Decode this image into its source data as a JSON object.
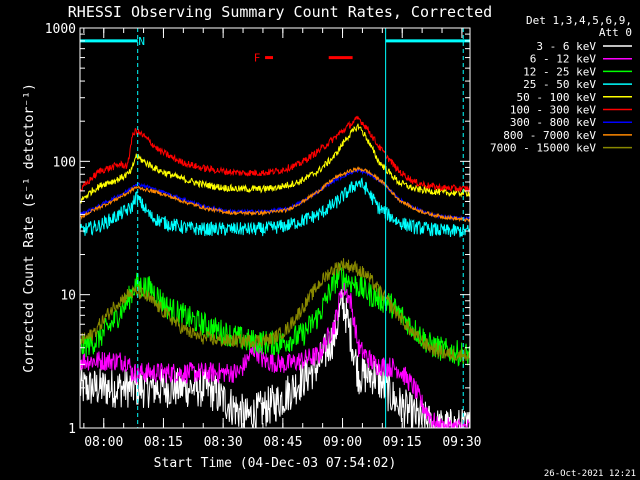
{
  "chart_data": {
    "type": "line",
    "title": "RHESSI Observing Summary Count Rates, Corrected",
    "xlabel": "Start Time (04-Dec-03 07:54:02)",
    "ylabel": "Corrected Count Rate (s⁻¹ detector⁻¹)",
    "ylim": [
      1,
      1000
    ],
    "yscale": "log",
    "xlim_minutes": [
      0,
      98
    ],
    "x_ticks": [
      {
        "label": "08:00",
        "t": 5.97
      },
      {
        "label": "08:15",
        "t": 20.97
      },
      {
        "label": "08:30",
        "t": 35.97
      },
      {
        "label": "08:45",
        "t": 50.97
      },
      {
        "label": "09:00",
        "t": 65.97
      },
      {
        "label": "09:15",
        "t": 80.97
      },
      {
        "label": "09:30",
        "t": 95.97
      }
    ],
    "y_ticks": [
      {
        "label": "1",
        "v": 1
      },
      {
        "label": "10",
        "v": 10
      },
      {
        "label": "100",
        "v": 100
      },
      {
        "label": "1000",
        "v": 1000
      }
    ],
    "legend_header": [
      "Det 1,3,4,5,6,9,",
      "Att 0"
    ],
    "legend_placement": "right",
    "series": [
      {
        "name": "3 - 6 keV",
        "color": "#ffffff",
        "x": [
          0,
          25,
          32,
          42,
          50,
          55,
          60,
          64,
          66,
          68,
          70,
          74,
          80,
          85,
          90,
          98
        ],
        "y": [
          2.0,
          2.0,
          2.0,
          1.2,
          1.6,
          2.2,
          3.0,
          5.0,
          9.0,
          5.0,
          2.5,
          2.5,
          1.5,
          1.2,
          1.0,
          1.0
        ]
      },
      {
        "name": "6 - 12 keV",
        "color": "#ff00ff",
        "x": [
          0,
          12,
          13,
          40,
          44,
          46,
          52,
          60,
          64,
          66,
          68,
          70,
          74,
          80,
          84,
          86,
          90,
          98
        ],
        "y": [
          3.2,
          3.2,
          2.6,
          2.6,
          4.0,
          3.2,
          3.0,
          3.5,
          6.0,
          12.0,
          9.0,
          4.0,
          3.0,
          2.8,
          2.0,
          1.5,
          1.0,
          1.0
        ]
      },
      {
        "name": "12 - 25 keV",
        "color": "#00ff00",
        "x": [
          0,
          4,
          8,
          12,
          14,
          18,
          22,
          28,
          34,
          42,
          50,
          56,
          60,
          63,
          65,
          67,
          69,
          73,
          78,
          84,
          88,
          92,
          98
        ],
        "y": [
          4.0,
          4.5,
          6.0,
          9.0,
          12.0,
          11.0,
          8.0,
          6.5,
          5.5,
          4.5,
          4.3,
          5.0,
          7.0,
          11.0,
          14.0,
          13.0,
          12.0,
          10.0,
          8.5,
          5.5,
          4.2,
          3.8,
          3.5
        ]
      },
      {
        "name": "25 - 50 keV",
        "color": "#00ffff",
        "x": [
          0,
          5,
          10,
          13,
          14,
          15,
          18,
          22,
          26,
          30,
          38,
          46,
          52,
          56,
          60,
          64,
          68,
          70,
          72,
          75,
          80,
          84,
          88,
          92,
          98
        ],
        "y": [
          30,
          33,
          40,
          45,
          55,
          50,
          38,
          34,
          32,
          31,
          31,
          31,
          33,
          36,
          40,
          48,
          62,
          70,
          62,
          45,
          35,
          32,
          31,
          30,
          30
        ]
      },
      {
        "name": "50 - 100 keV",
        "color": "#ffff00",
        "x": [
          0,
          3,
          6,
          9,
          12,
          13,
          14,
          16,
          20,
          25,
          30,
          35,
          40,
          46,
          50,
          55,
          60,
          64,
          67,
          70,
          72,
          75,
          80,
          84,
          88,
          92,
          98
        ],
        "y": [
          50,
          60,
          68,
          72,
          80,
          85,
          110,
          100,
          85,
          75,
          68,
          64,
          62,
          62,
          64,
          70,
          85,
          110,
          150,
          185,
          150,
          100,
          70,
          62,
          60,
          58,
          58
        ]
      },
      {
        "name": "100 - 300 keV",
        "color": "#ff0000",
        "x": [
          0,
          3,
          5,
          8,
          10,
          12,
          13,
          14,
          16,
          20,
          25,
          30,
          35,
          40,
          46,
          50,
          55,
          60,
          64,
          67,
          70,
          72,
          75,
          80,
          84,
          88,
          92,
          98
        ],
        "y": [
          60,
          75,
          85,
          90,
          95,
          92,
          150,
          170,
          155,
          120,
          100,
          90,
          85,
          82,
          82,
          85,
          95,
          120,
          150,
          180,
          210,
          180,
          130,
          85,
          70,
          65,
          63,
          62
        ]
      },
      {
        "name": "300 - 800 keV",
        "color": "#0000ff",
        "x": [
          0,
          4,
          8,
          12,
          14,
          16,
          20,
          26,
          32,
          38,
          46,
          52,
          56,
          60,
          64,
          68,
          70,
          72,
          76,
          80,
          84,
          88,
          92,
          98
        ],
        "y": [
          40,
          45,
          52,
          60,
          68,
          66,
          60,
          52,
          45,
          42,
          42,
          44,
          50,
          60,
          72,
          82,
          85,
          82,
          70,
          52,
          45,
          40,
          38,
          37
        ]
      },
      {
        "name": "800 - 7000 keV",
        "color": "#ff8800",
        "x": [
          0,
          4,
          8,
          12,
          14,
          16,
          20,
          26,
          32,
          38,
          46,
          52,
          56,
          60,
          64,
          68,
          70,
          72,
          76,
          80,
          84,
          88,
          92,
          98
        ],
        "y": [
          38,
          44,
          50,
          58,
          64,
          62,
          58,
          50,
          44,
          41,
          41,
          43,
          50,
          60,
          75,
          85,
          88,
          85,
          70,
          52,
          44,
          40,
          38,
          36
        ]
      },
      {
        "name": "7000 - 15000 keV",
        "color": "#888800",
        "x": [
          0,
          3,
          6,
          9,
          12,
          14,
          16,
          18,
          22,
          26,
          30,
          36,
          42,
          48,
          52,
          56,
          60,
          63,
          66,
          69,
          72,
          76,
          80,
          84,
          88,
          92,
          98
        ],
        "y": [
          4.5,
          5.0,
          6.5,
          8.5,
          10.0,
          10.5,
          10.0,
          9.0,
          7.0,
          5.5,
          4.8,
          4.5,
          4.5,
          4.6,
          5.5,
          8.0,
          12.0,
          15.0,
          17.0,
          16.0,
          14.0,
          10.0,
          7.0,
          5.0,
          4.0,
          3.6,
          3.5
        ]
      }
    ],
    "annotations": [
      {
        "kind": "attenuator-bar",
        "color": "#00ffff",
        "t_start": 0,
        "t_end": 14.5,
        "level": 800
      },
      {
        "kind": "attenuator-bar",
        "color": "#00ffff",
        "t_start": 76.8,
        "t_end": 98,
        "level": 800
      },
      {
        "kind": "flag",
        "label": "N",
        "color": "#00ffff",
        "t": 15.5,
        "level": 800
      },
      {
        "kind": "flag",
        "label": "F",
        "color": "#ff0000",
        "t": 44.5,
        "level": 600
      },
      {
        "kind": "flare-bar",
        "color": "#ff0000",
        "t_start": 46.5,
        "t_end": 48.5,
        "level": 600
      },
      {
        "kind": "flare-bar",
        "color": "#ff0000",
        "t_start": 62.5,
        "t_end": 68.5,
        "level": 600
      }
    ],
    "vlines": [
      {
        "t": 14.5,
        "color": "#00ffff",
        "style": "dashed"
      },
      {
        "t": 76.8,
        "color": "#00ffff",
        "style": "solid"
      },
      {
        "t": 96.3,
        "color": "#00ffff",
        "style": "dashed"
      }
    ]
  },
  "footer": {
    "timestamp": "26-Oct-2021 12:21"
  }
}
